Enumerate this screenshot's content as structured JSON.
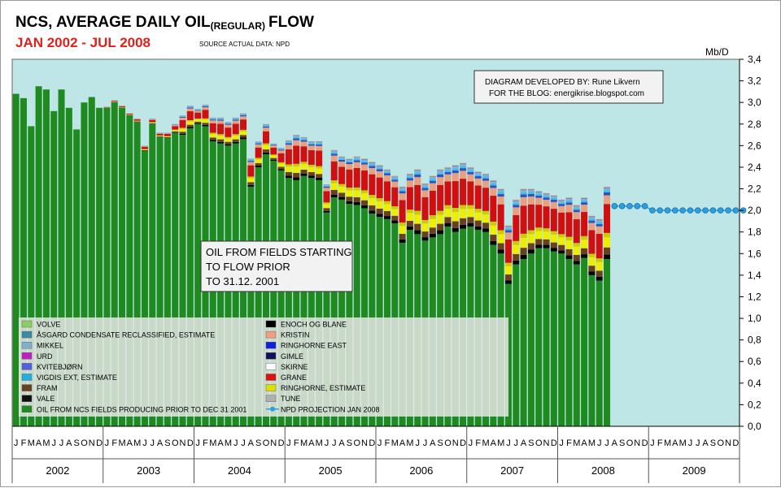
{
  "title_main": "NCS, AVERAGE DAILY OIL",
  "title_sub": "(REGULAR)",
  "title_end": "FLOW",
  "subtitle": "JAN 2002 - JUL 2008",
  "source": "SOURCE ACTUAL DATA: NPD",
  "unit_label": "Mb/D",
  "credit_line1": "DIAGRAM DEVELOPED BY: Rune Likvern",
  "credit_line2": "FOR THE BLOG: energikrise.blogspot.com",
  "annotation": [
    "OIL FROM FIELDS STARTING",
    "TO FLOW PRIOR",
    "TO 31.12. 2001"
  ],
  "colors": {
    "plot_bg": "#bfe6e6",
    "base": "#1f8a1f",
    "projection": "#2aa0e0",
    "title_red": "#e0201a"
  },
  "chart_data": {
    "type": "bar",
    "stacked": true,
    "ylim": [
      0,
      3.4
    ],
    "yticks": [
      "0,0",
      "0,2",
      "0,4",
      "0,6",
      "0,8",
      "1,0",
      "1,2",
      "1,4",
      "1,6",
      "1,8",
      "2,0",
      "2,2",
      "2,4",
      "2,6",
      "2,8",
      "3,0",
      "3,2",
      "3,4"
    ],
    "month_letters": [
      "J",
      "F",
      "M",
      "A",
      "M",
      "J",
      "J",
      "A",
      "S",
      "O",
      "N",
      "D"
    ],
    "years": [
      "2002",
      "2003",
      "2004",
      "2005",
      "2006",
      "2007",
      "2008",
      "2009"
    ],
    "grid": false,
    "legend_placement": "bottom-left",
    "base_series_name": "OIL FROM NCS FIELDS PRODUCING PRIOR TO DEC 31 2001",
    "base_values": [
      3.08,
      3.04,
      2.78,
      3.15,
      3.12,
      2.92,
      3.12,
      2.95,
      2.75,
      3.0,
      3.05,
      2.95,
      2.95,
      3.0,
      2.95,
      2.88,
      2.82,
      2.55,
      2.8,
      2.68,
      2.67,
      2.72,
      2.7,
      2.76,
      2.8,
      2.78,
      2.64,
      2.62,
      2.6,
      2.62,
      2.66,
      2.22,
      2.4,
      2.52,
      2.46,
      2.37,
      2.3,
      2.28,
      2.32,
      2.3,
      2.28,
      1.98,
      2.12,
      2.1,
      2.06,
      2.05,
      2.02,
      1.97,
      1.94,
      1.92,
      1.88,
      1.7,
      1.82,
      1.78,
      1.72,
      1.75,
      1.78,
      1.85,
      1.8,
      1.83,
      1.85,
      1.82,
      1.8,
      1.68,
      1.6,
      1.32,
      1.5,
      1.55,
      1.6,
      1.65,
      1.65,
      1.62,
      1.6,
      1.55,
      1.5,
      1.56,
      1.4,
      1.35,
      1.55
    ],
    "total_values": [
      3.08,
      3.04,
      2.78,
      3.15,
      3.12,
      2.92,
      3.12,
      2.95,
      2.75,
      3.0,
      3.05,
      2.95,
      2.96,
      3.02,
      2.97,
      2.9,
      2.85,
      2.6,
      2.85,
      2.72,
      2.72,
      2.8,
      2.88,
      2.97,
      2.94,
      2.98,
      2.86,
      2.86,
      2.82,
      2.86,
      2.9,
      2.48,
      2.64,
      2.8,
      2.62,
      2.58,
      2.65,
      2.7,
      2.68,
      2.64,
      2.64,
      2.24,
      2.56,
      2.5,
      2.48,
      2.5,
      2.48,
      2.45,
      2.42,
      2.38,
      2.32,
      2.22,
      2.34,
      2.38,
      2.25,
      2.32,
      2.38,
      2.4,
      2.42,
      2.44,
      2.4,
      2.36,
      2.34,
      2.28,
      2.2,
      1.86,
      2.1,
      2.2,
      2.2,
      2.18,
      2.16,
      2.14,
      2.1,
      2.12,
      2.05,
      2.12,
      1.95,
      1.92,
      2.22
    ],
    "layer_colors_bottom_to_top": [
      "#000000",
      "#6a4020",
      "#eeee00",
      "#cccc00",
      "#d01010",
      "#e8a080",
      "#3050c8",
      "#40c0e0",
      "#80b0e0",
      "#c040c0",
      "#8ad060"
    ],
    "projection_name": "NPD PROJECTION JAN 2008",
    "projection_values": [
      2.04,
      2.04,
      2.04,
      2.04,
      2.04,
      2.0,
      2.0,
      2.0,
      2.0,
      2.0,
      2.0,
      2.0,
      2.0,
      2.0,
      2.0,
      2.0,
      2.0,
      2.0
    ],
    "legend_left": [
      {
        "name": "VOLVE",
        "color": "#8ad060"
      },
      {
        "name": "ÅSGARD CONDENSATE RECLASSIFIED, ESTIMATE",
        "color": "#3a8aa8"
      },
      {
        "name": "MIKKEL",
        "color": "#80b0d0"
      },
      {
        "name": "URD",
        "color": "#c020c0"
      },
      {
        "name": "KVITEBJØRN",
        "color": "#5060e0"
      },
      {
        "name": "VIGDIS EXT,  ESTIMATE",
        "color": "#20b0e0"
      },
      {
        "name": "FRAM",
        "color": "#6a4020"
      },
      {
        "name": "VALE",
        "color": "#101010"
      },
      {
        "name": "OIL FROM NCS FIELDS PRODUCING PRIOR TO DEC 31 2001",
        "color": "#1f8a1f"
      }
    ],
    "legend_right": [
      {
        "name": "ENOCH OG BLANE",
        "color": "#000000"
      },
      {
        "name": "KRISTIN",
        "color": "#f0a080"
      },
      {
        "name": "RINGHORNE EAST",
        "color": "#1020e0"
      },
      {
        "name": "GIMLE",
        "color": "#101060"
      },
      {
        "name": "SKIRNE",
        "color": "#ffffff"
      },
      {
        "name": "GRANE",
        "color": "#e01010"
      },
      {
        "name": "RINGHORNE,  ESTIMATE",
        "color": "#e0e000"
      },
      {
        "name": "TUNE",
        "color": "#b0b0b0"
      },
      {
        "name": "NPD PROJECTION JAN 2008",
        "color": "#2aa0e0"
      }
    ]
  }
}
